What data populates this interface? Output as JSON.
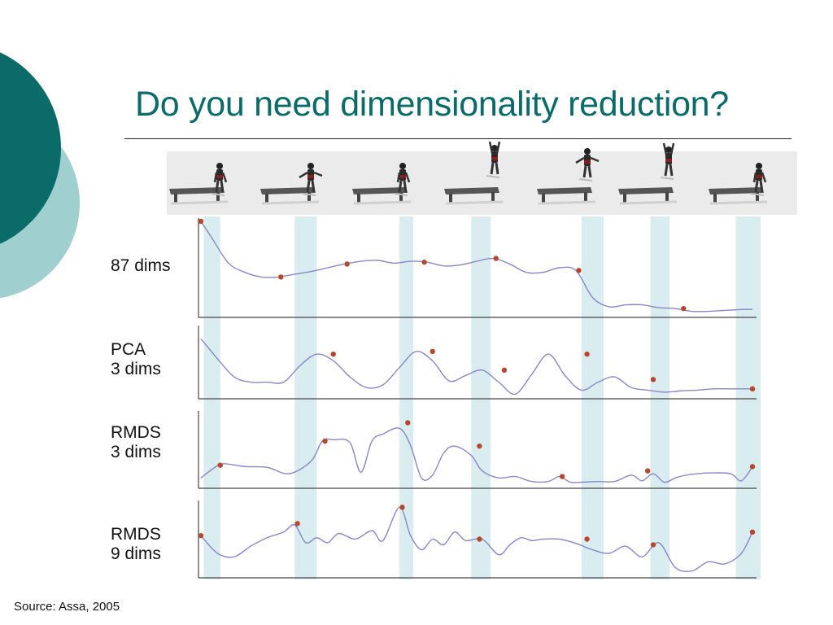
{
  "slide": {
    "title": "Do you need dimensionality reduction?",
    "source": "Source: Assa, 2005",
    "colors": {
      "title": "#0b6b69",
      "circle_dark": "#0b6b69",
      "circle_light": "#9fcfcf",
      "highlight": "#d9ecef",
      "curve": "#8a86c8",
      "key_point": "#b5482c"
    }
  },
  "strip": {
    "icon_names": [
      "jump-frame-1",
      "jump-frame-2",
      "jump-frame-3",
      "jump-frame-4",
      "jump-frame-5",
      "jump-frame-6",
      "jump-frame-7"
    ]
  },
  "chart_data": {
    "type": "line",
    "x_range": [
      0,
      100
    ],
    "highlight_bands": [
      [
        0.5,
        3.5
      ],
      [
        17,
        21
      ],
      [
        36,
        38.5
      ],
      [
        49,
        52.5
      ],
      [
        69,
        73
      ],
      [
        81.5,
        85
      ],
      [
        97,
        102
      ]
    ],
    "panels": [
      {
        "label": [
          "87 dims"
        ],
        "x": [
          0,
          2,
          5,
          8,
          11,
          14,
          17,
          20,
          23,
          26,
          29,
          32,
          35,
          38,
          41,
          44,
          47,
          50,
          53,
          56,
          59,
          62,
          65,
          68,
          71,
          74,
          77,
          80,
          83,
          86,
          89,
          92,
          95,
          98,
          100
        ],
        "y": [
          1.0,
          0.82,
          0.55,
          0.45,
          0.4,
          0.4,
          0.43,
          0.46,
          0.5,
          0.54,
          0.57,
          0.58,
          0.55,
          0.57,
          0.56,
          0.52,
          0.53,
          0.57,
          0.6,
          0.54,
          0.45,
          0.45,
          0.5,
          0.47,
          0.18,
          0.08,
          0.1,
          0.1,
          0.07,
          0.06,
          0.03,
          0.03,
          0.04,
          0.05,
          0.05
        ],
        "key_points": [
          {
            "x": 0,
            "y": 1.0
          },
          {
            "x": 14.5,
            "y": 0.4
          },
          {
            "x": 26.5,
            "y": 0.54
          },
          {
            "x": 40.5,
            "y": 0.56
          },
          {
            "x": 53.5,
            "y": 0.6
          },
          {
            "x": 68.5,
            "y": 0.47
          },
          {
            "x": 87.5,
            "y": 0.06
          }
        ]
      },
      {
        "label": [
          "PCA",
          "3 dims"
        ],
        "x": [
          0,
          3,
          6,
          9,
          12,
          15,
          18,
          21,
          24,
          27,
          30,
          33,
          36,
          39,
          42,
          45,
          48,
          51,
          54,
          57,
          60,
          63,
          66,
          69,
          72,
          75,
          78,
          81,
          84,
          87,
          90,
          93,
          96,
          100
        ],
        "y": [
          0.85,
          0.55,
          0.28,
          0.2,
          0.2,
          0.2,
          0.45,
          0.62,
          0.52,
          0.28,
          0.12,
          0.16,
          0.42,
          0.66,
          0.52,
          0.22,
          0.3,
          0.38,
          0.2,
          0.02,
          0.32,
          0.62,
          0.3,
          0.08,
          0.2,
          0.28,
          0.12,
          0.08,
          0.05,
          0.07,
          0.08,
          0.1,
          0.1,
          0.1
        ],
        "key_points": [
          {
            "x": 24,
            "y": 0.62
          },
          {
            "x": 42,
            "y": 0.66
          },
          {
            "x": 55,
            "y": 0.38
          },
          {
            "x": 70,
            "y": 0.62
          },
          {
            "x": 82,
            "y": 0.24
          },
          {
            "x": 100,
            "y": 0.1
          }
        ]
      },
      {
        "label": [
          "RMDS",
          "3 dims"
        ],
        "x": [
          0,
          2,
          4,
          8,
          12,
          16,
          20,
          22,
          24,
          27,
          29,
          31,
          33,
          36,
          38,
          40,
          42,
          44,
          46,
          49,
          51,
          54,
          57,
          60,
          63,
          65,
          67,
          69,
          72,
          75,
          78,
          80,
          82,
          84,
          86,
          88,
          92,
          96,
          98,
          100
        ],
        "y": [
          0.1,
          0.22,
          0.3,
          0.26,
          0.25,
          0.16,
          0.34,
          0.62,
          0.64,
          0.6,
          0.18,
          0.62,
          0.72,
          0.8,
          0.56,
          0.1,
          0.14,
          0.45,
          0.55,
          0.42,
          0.2,
          0.1,
          0.12,
          0.05,
          0.05,
          0.12,
          0.04,
          0.04,
          0.05,
          0.05,
          0.14,
          0.06,
          0.16,
          0.04,
          0.1,
          0.14,
          0.17,
          0.16,
          0.06,
          0.26
        ],
        "key_points": [
          {
            "x": 3.5,
            "y": 0.28
          },
          {
            "x": 22.5,
            "y": 0.62
          },
          {
            "x": 37.5,
            "y": 0.88
          },
          {
            "x": 50.5,
            "y": 0.55
          },
          {
            "x": 65.5,
            "y": 0.12
          },
          {
            "x": 81,
            "y": 0.2
          },
          {
            "x": 100,
            "y": 0.26
          }
        ]
      },
      {
        "label": [
          "RMDS",
          "9 dims"
        ],
        "x": [
          0,
          3,
          6,
          9,
          12,
          15,
          17,
          19,
          21,
          23,
          25,
          28,
          31,
          33,
          36,
          38,
          40,
          42,
          44,
          46,
          48,
          51,
          54,
          56,
          58,
          60,
          62,
          65,
          68,
          71,
          74,
          77,
          80,
          83,
          86,
          89,
          92,
          95,
          98,
          100
        ],
        "y": [
          0.55,
          0.3,
          0.25,
          0.4,
          0.52,
          0.6,
          0.7,
          0.45,
          0.52,
          0.45,
          0.58,
          0.5,
          0.62,
          0.48,
          0.95,
          0.55,
          0.35,
          0.5,
          0.42,
          0.6,
          0.48,
          0.5,
          0.28,
          0.42,
          0.52,
          0.48,
          0.5,
          0.5,
          0.44,
          0.35,
          0.3,
          0.4,
          0.25,
          0.45,
          0.1,
          0.05,
          0.18,
          0.15,
          0.3,
          0.6
        ],
        "key_points": [
          {
            "x": 0,
            "y": 0.55
          },
          {
            "x": 17.5,
            "y": 0.72
          },
          {
            "x": 36.5,
            "y": 0.95
          },
          {
            "x": 50.5,
            "y": 0.5
          },
          {
            "x": 70,
            "y": 0.5
          },
          {
            "x": 82,
            "y": 0.42
          },
          {
            "x": 100,
            "y": 0.6
          }
        ]
      }
    ]
  }
}
